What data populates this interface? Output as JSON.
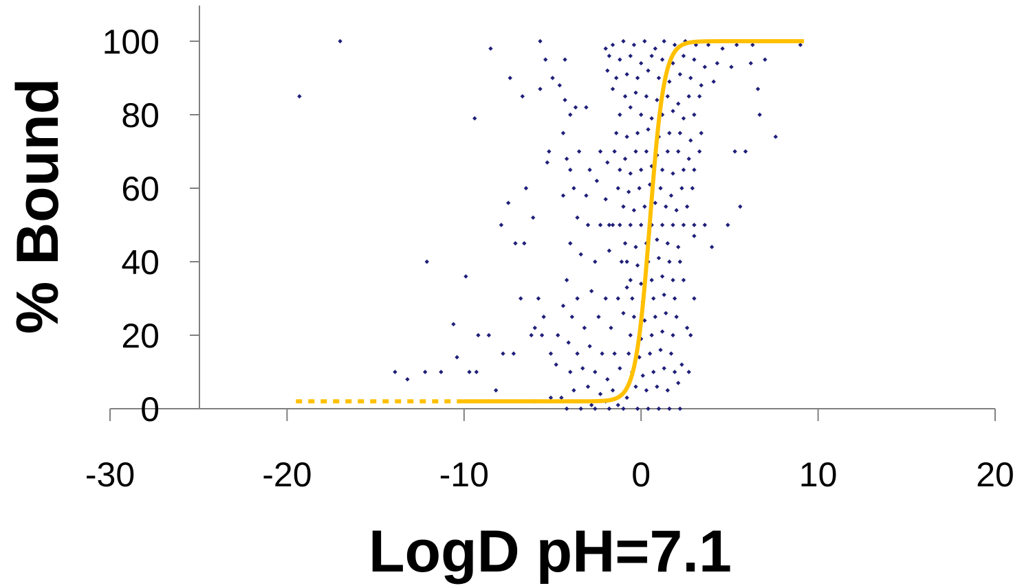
{
  "chart_data": {
    "type": "scatter",
    "title": "",
    "xlabel": "LogD pH=7.1",
    "ylabel": "% Bound",
    "xlim": [
      -30,
      20
    ],
    "ylim": [
      0,
      100
    ],
    "x_ticks": [
      "-30",
      "-20",
      "-10",
      "0",
      "10",
      "20"
    ],
    "y_ticks": [
      "0",
      "20",
      "40",
      "60",
      "80",
      "100"
    ],
    "grid": false,
    "legend": "none",
    "colors": {
      "points": "#1f1f7a",
      "fit": "#ffc000",
      "axis": "#808080"
    },
    "series": [
      {
        "kind": "scatter",
        "points": [
          [
            -19.3,
            85
          ],
          [
            -17,
            100
          ],
          [
            -8.5,
            98
          ],
          [
            -9.4,
            79
          ],
          [
            -12.1,
            40
          ],
          [
            -9.9,
            36
          ],
          [
            -10.6,
            23
          ],
          [
            -8.6,
            20
          ],
          [
            -9.2,
            20
          ],
          [
            -10.4,
            14
          ],
          [
            -9.7,
            10
          ],
          [
            -9.3,
            10
          ],
          [
            -13.9,
            10
          ],
          [
            -13.2,
            8
          ],
          [
            -12.2,
            10
          ],
          [
            -11.3,
            10
          ],
          [
            -7.2,
            15
          ],
          [
            -7.8,
            15
          ],
          [
            -8.2,
            5
          ],
          [
            -7.5,
            56
          ],
          [
            -7.9,
            50
          ],
          [
            -7.1,
            45
          ],
          [
            -6.6,
            45
          ],
          [
            -6.1,
            52
          ],
          [
            -6.5,
            60
          ],
          [
            -7.4,
            90
          ],
          [
            -6.7,
            85
          ],
          [
            -5.7,
            87
          ],
          [
            -5.4,
            95
          ],
          [
            -5.0,
            90
          ],
          [
            -4.3,
            95
          ],
          [
            -5.7,
            100
          ],
          [
            -4.6,
            88
          ],
          [
            -4.3,
            84
          ],
          [
            -4.0,
            80
          ],
          [
            -3.7,
            82
          ],
          [
            -3.1,
            82
          ],
          [
            -4.4,
            75
          ],
          [
            -4.2,
            68
          ],
          [
            -5.2,
            70
          ],
          [
            -5.3,
            67
          ],
          [
            -4.0,
            65
          ],
          [
            -3.5,
            70
          ],
          [
            -2.9,
            65
          ],
          [
            -2.3,
            70
          ],
          [
            -1.9,
            67
          ],
          [
            -3.8,
            60
          ],
          [
            -3.1,
            58
          ],
          [
            -2.5,
            62
          ],
          [
            -2.0,
            57
          ],
          [
            -4.4,
            58
          ],
          [
            -3.6,
            52
          ],
          [
            -3.0,
            50
          ],
          [
            -2.3,
            50
          ],
          [
            -1.6,
            50
          ],
          [
            -4.0,
            45
          ],
          [
            -3.4,
            42
          ],
          [
            -2.6,
            40
          ],
          [
            -1.8,
            43
          ],
          [
            -1.1,
            40
          ],
          [
            -4.2,
            35
          ],
          [
            -3.6,
            30
          ],
          [
            -2.8,
            32
          ],
          [
            -2.0,
            30
          ],
          [
            -1.3,
            30
          ],
          [
            -0.8,
            33
          ],
          [
            -4.4,
            28
          ],
          [
            -3.9,
            25
          ],
          [
            -3.2,
            22
          ],
          [
            -2.4,
            25
          ],
          [
            -1.7,
            22
          ],
          [
            -1.0,
            26
          ],
          [
            -4.7,
            20
          ],
          [
            -4.1,
            18
          ],
          [
            -3.6,
            15
          ],
          [
            -2.9,
            17
          ],
          [
            -2.2,
            15
          ],
          [
            -1.5,
            15
          ],
          [
            -5.6,
            20
          ],
          [
            -6.2,
            20
          ],
          [
            -5.1,
            15
          ],
          [
            -4.8,
            12
          ],
          [
            -4.0,
            10
          ],
          [
            -3.3,
            11
          ],
          [
            -2.6,
            10
          ],
          [
            -1.9,
            8
          ],
          [
            -1.2,
            11
          ],
          [
            -6.0,
            22
          ],
          [
            -5.5,
            25
          ],
          [
            -6.8,
            30
          ],
          [
            -5.8,
            30
          ],
          [
            -3.8,
            5
          ],
          [
            -3.0,
            6
          ],
          [
            -2.3,
            4
          ],
          [
            -1.6,
            5
          ],
          [
            -4.5,
            3
          ],
          [
            -3.6,
            2
          ],
          [
            -2.8,
            1
          ],
          [
            -2.0,
            2
          ],
          [
            -1.3,
            1
          ],
          [
            -0.8,
            3
          ],
          [
            -6.0,
            2
          ],
          [
            -5.1,
            3
          ],
          [
            -4.2,
            0
          ],
          [
            -3.4,
            0
          ],
          [
            -2.6,
            0
          ],
          [
            -1.8,
            0
          ],
          [
            -1.0,
            0
          ],
          [
            -1.6,
            99
          ],
          [
            -2.0,
            98
          ],
          [
            -1.0,
            100
          ],
          [
            -0.4,
            99
          ],
          [
            0.2,
            100
          ],
          [
            0.8,
            98
          ],
          [
            1.3,
            100
          ],
          [
            1.9,
            99
          ],
          [
            2.5,
            100
          ],
          [
            3.1,
            99
          ],
          [
            3.8,
            99
          ],
          [
            4.6,
            98
          ],
          [
            5.4,
            99
          ],
          [
            6.3,
            99
          ],
          [
            -1.8,
            96
          ],
          [
            -1.2,
            95
          ],
          [
            -0.6,
            96
          ],
          [
            0.0,
            94
          ],
          [
            0.6,
            96
          ],
          [
            1.2,
            95
          ],
          [
            1.8,
            94
          ],
          [
            2.4,
            96
          ],
          [
            3.0,
            95
          ],
          [
            3.6,
            93
          ],
          [
            4.3,
            94
          ],
          [
            5.1,
            93
          ],
          [
            6.2,
            94
          ],
          [
            7.0,
            95
          ],
          [
            -1.9,
            92
          ],
          [
            -1.4,
            90
          ],
          [
            -0.8,
            91
          ],
          [
            -0.2,
            90
          ],
          [
            0.4,
            92
          ],
          [
            1.0,
            90
          ],
          [
            1.6,
            89
          ],
          [
            2.2,
            91
          ],
          [
            2.8,
            90
          ],
          [
            3.4,
            88
          ],
          [
            4.1,
            89
          ],
          [
            -1.6,
            87
          ],
          [
            -0.9,
            85
          ],
          [
            -0.3,
            86
          ],
          [
            0.3,
            85
          ],
          [
            0.9,
            84
          ],
          [
            1.5,
            85
          ],
          [
            2.1,
            83
          ],
          [
            2.7,
            85
          ],
          [
            3.3,
            85
          ],
          [
            -1.2,
            80
          ],
          [
            -0.6,
            82
          ],
          [
            0.0,
            80
          ],
          [
            0.6,
            79
          ],
          [
            1.2,
            80
          ],
          [
            1.8,
            81
          ],
          [
            2.4,
            79
          ],
          [
            3.0,
            80
          ],
          [
            6.6,
            87
          ],
          [
            6.7,
            80
          ],
          [
            7.6,
            74
          ],
          [
            9.0,
            99
          ],
          [
            5.3,
            70
          ],
          [
            5.9,
            70
          ],
          [
            -1.4,
            75
          ],
          [
            -0.8,
            74
          ],
          [
            -0.2,
            75
          ],
          [
            0.4,
            76
          ],
          [
            1.0,
            74
          ],
          [
            1.6,
            75
          ],
          [
            2.2,
            75
          ],
          [
            2.8,
            73
          ],
          [
            3.4,
            75
          ],
          [
            -1.5,
            70
          ],
          [
            -0.9,
            68
          ],
          [
            -0.3,
            70
          ],
          [
            0.3,
            70
          ],
          [
            0.9,
            69
          ],
          [
            1.5,
            70
          ],
          [
            2.1,
            70
          ],
          [
            2.7,
            68
          ],
          [
            3.3,
            70
          ],
          [
            -1.2,
            65
          ],
          [
            -0.6,
            64
          ],
          [
            0.0,
            65
          ],
          [
            0.6,
            66
          ],
          [
            1.2,
            65
          ],
          [
            1.8,
            64
          ],
          [
            2.4,
            65
          ],
          [
            3.0,
            65
          ],
          [
            -1.3,
            60
          ],
          [
            -0.7,
            59
          ],
          [
            -0.1,
            60
          ],
          [
            0.5,
            61
          ],
          [
            1.1,
            60
          ],
          [
            1.7,
            58
          ],
          [
            2.3,
            60
          ],
          [
            2.9,
            60
          ],
          [
            -1.0,
            55
          ],
          [
            -0.4,
            54
          ],
          [
            0.2,
            55
          ],
          [
            0.8,
            56
          ],
          [
            1.4,
            55
          ],
          [
            2.0,
            54
          ],
          [
            2.6,
            55
          ],
          [
            5.6,
            55
          ],
          [
            -1.8,
            50
          ],
          [
            -1.2,
            50
          ],
          [
            -0.6,
            50
          ],
          [
            0.0,
            50
          ],
          [
            0.6,
            50
          ],
          [
            1.2,
            50
          ],
          [
            1.8,
            50
          ],
          [
            2.4,
            50
          ],
          [
            3.0,
            50
          ],
          [
            3.6,
            50
          ],
          [
            4.9,
            50
          ],
          [
            -0.9,
            45
          ],
          [
            -0.3,
            44
          ],
          [
            0.3,
            45
          ],
          [
            0.9,
            46
          ],
          [
            1.5,
            45
          ],
          [
            2.1,
            44
          ],
          [
            3.0,
            47
          ],
          [
            4.0,
            44
          ],
          [
            -0.8,
            40
          ],
          [
            -0.2,
            39
          ],
          [
            0.4,
            40
          ],
          [
            1.0,
            41
          ],
          [
            1.6,
            40
          ],
          [
            2.2,
            40
          ],
          [
            -0.6,
            35
          ],
          [
            0.0,
            34
          ],
          [
            0.6,
            35
          ],
          [
            1.2,
            36
          ],
          [
            1.8,
            35
          ],
          [
            2.4,
            35
          ],
          [
            -0.5,
            30
          ],
          [
            0.1,
            29
          ],
          [
            0.7,
            30
          ],
          [
            1.3,
            31
          ],
          [
            1.9,
            30
          ],
          [
            3.0,
            30
          ],
          [
            -0.4,
            25
          ],
          [
            0.2,
            24
          ],
          [
            0.8,
            25
          ],
          [
            1.4,
            26
          ],
          [
            2.0,
            25
          ],
          [
            2.6,
            22
          ],
          [
            -0.6,
            20
          ],
          [
            0.0,
            19
          ],
          [
            0.6,
            20
          ],
          [
            1.2,
            21
          ],
          [
            1.8,
            20
          ],
          [
            2.8,
            20
          ],
          [
            -0.7,
            15
          ],
          [
            -0.1,
            14
          ],
          [
            0.5,
            15
          ],
          [
            1.1,
            16
          ],
          [
            1.7,
            15
          ],
          [
            2.3,
            12
          ],
          [
            -0.5,
            10
          ],
          [
            0.1,
            9
          ],
          [
            0.7,
            10
          ],
          [
            1.3,
            11
          ],
          [
            1.9,
            10
          ],
          [
            2.7,
            10
          ],
          [
            -0.3,
            6
          ],
          [
            0.3,
            5
          ],
          [
            0.9,
            6
          ],
          [
            1.5,
            5
          ],
          [
            2.1,
            7
          ],
          [
            -0.2,
            0
          ],
          [
            0.4,
            0
          ],
          [
            1.0,
            0
          ],
          [
            1.6,
            0
          ],
          [
            2.2,
            0
          ]
        ]
      },
      {
        "kind": "fit",
        "model": "sigmoid",
        "midpoint": 0.5,
        "steepness": 2.5,
        "bottom": 2,
        "top": 100,
        "solid_range": [
          -10,
          9
        ],
        "dashed_range": [
          -19.5,
          -10
        ],
        "dashed_tail_range": [
          5.5,
          9.2
        ]
      }
    ]
  }
}
